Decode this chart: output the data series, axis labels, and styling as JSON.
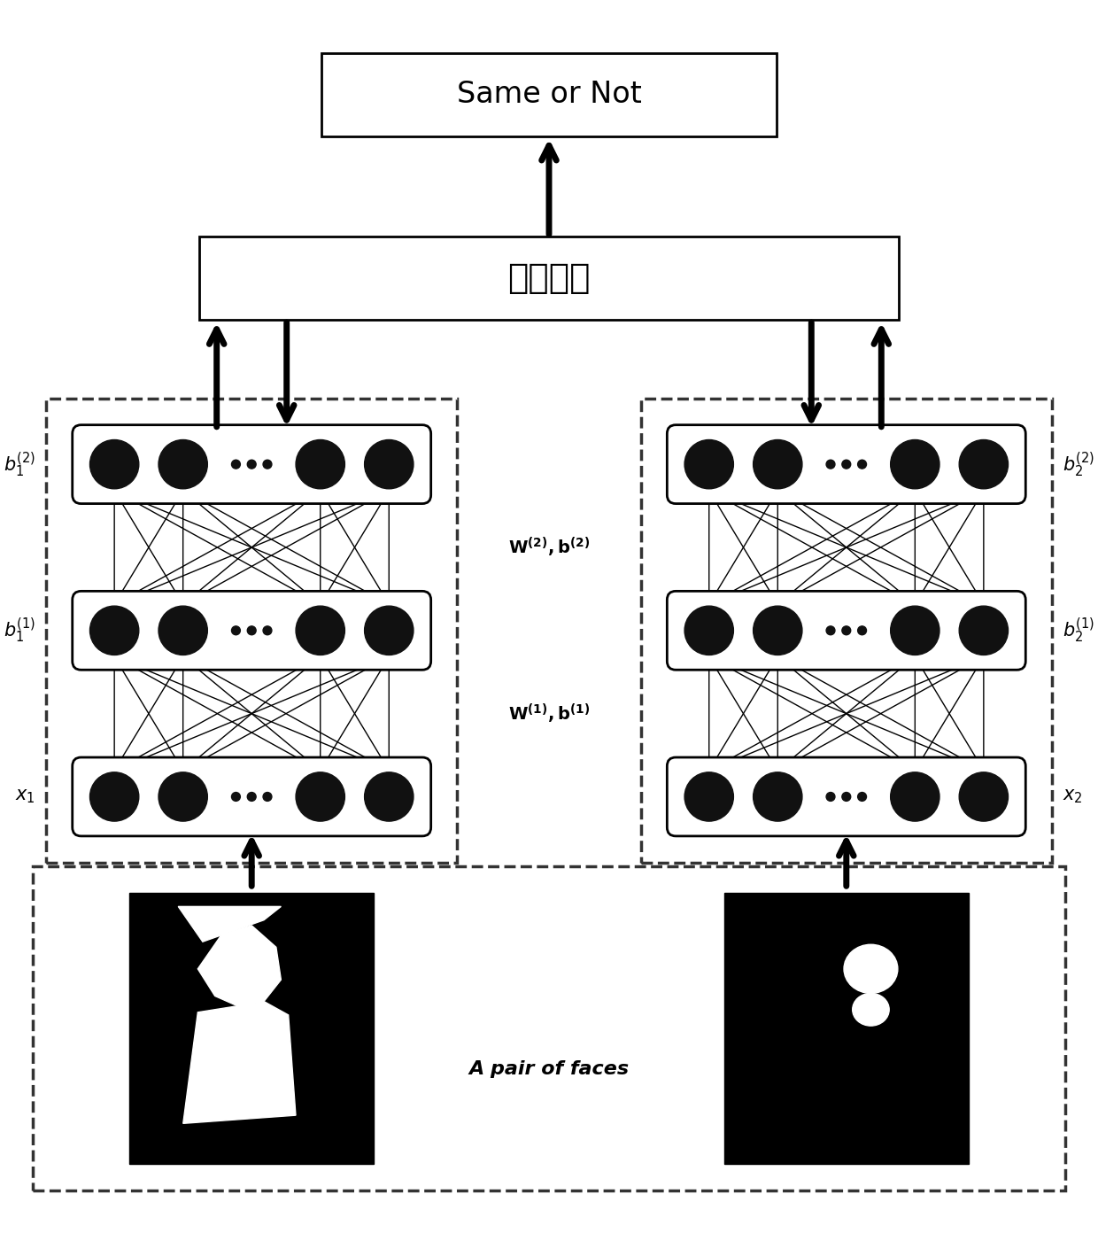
{
  "bg_color": "#ffffff",
  "title": "Same or Not",
  "transfer_label": "迁移学习",
  "faces_label": "A pair of faces",
  "node_color": "#111111",
  "dashed_color": "#222222"
}
